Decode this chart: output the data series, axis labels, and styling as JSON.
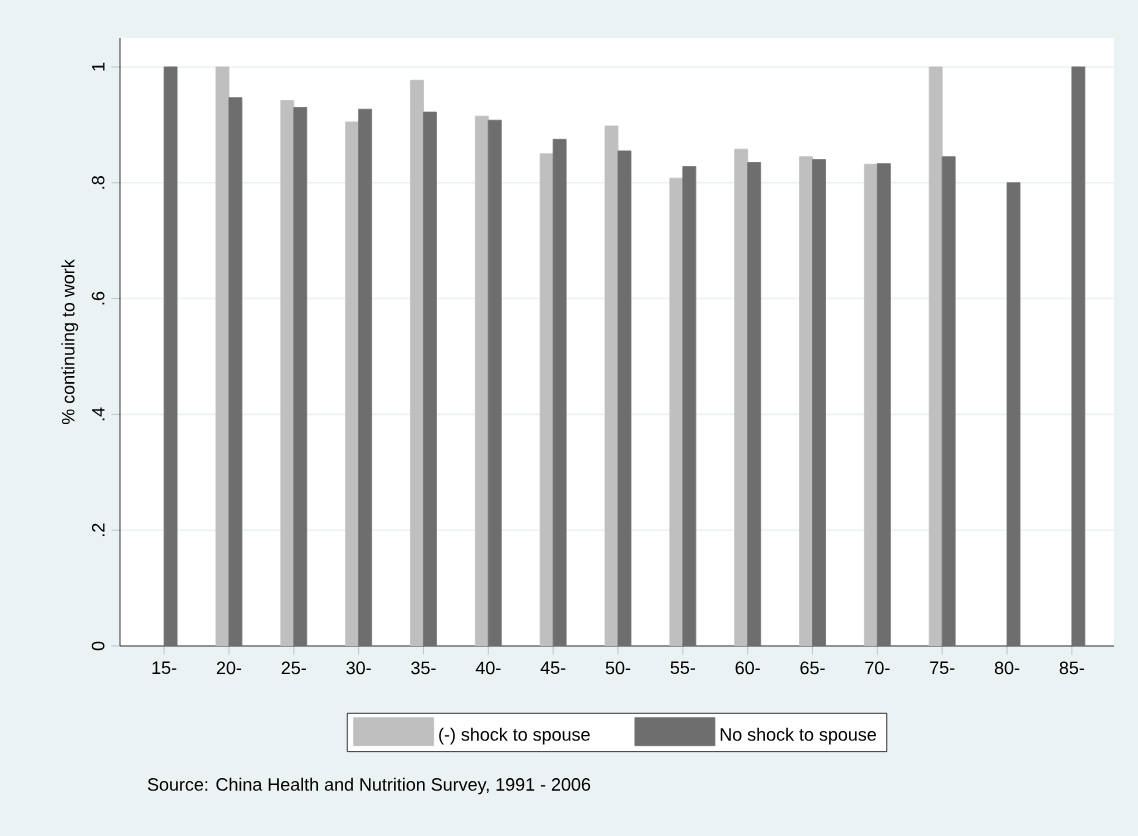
{
  "chart_data": {
    "type": "bar",
    "categories": [
      "15-",
      "20-",
      "25-",
      "30-",
      "35-",
      "40-",
      "45-",
      "50-",
      "55-",
      "60-",
      "65-",
      "70-",
      "75-",
      "80-",
      "85-"
    ],
    "series": [
      {
        "name": "(-) shock to spouse",
        "color": "#bfbfbf",
        "values": [
          null,
          1.0,
          0.942,
          0.905,
          0.977,
          0.915,
          0.85,
          0.898,
          0.808,
          0.858,
          0.845,
          0.832,
          1.0,
          null,
          null
        ]
      },
      {
        "name": "No shock to spouse",
        "color": "#6e6e6e",
        "values": [
          1.0,
          0.947,
          0.93,
          0.927,
          0.922,
          0.908,
          0.875,
          0.855,
          0.828,
          0.835,
          0.84,
          0.833,
          0.845,
          0.8,
          1.0
        ]
      }
    ],
    "ylabel": "% continuing to work",
    "ylim": [
      0,
      1.05
    ],
    "yticks": [
      0,
      {
        "value": 0.2,
        "label": ".2"
      },
      {
        "value": 0.4,
        "label": ".4"
      },
      {
        "value": 0.6,
        "label": ".6"
      },
      {
        "value": 0.8,
        "label": ".8"
      },
      1
    ],
    "grid": "y",
    "legend": "bottom",
    "annotations": [
      "Source: China Health and Nutrition Survey, 1991 - 2006"
    ]
  }
}
